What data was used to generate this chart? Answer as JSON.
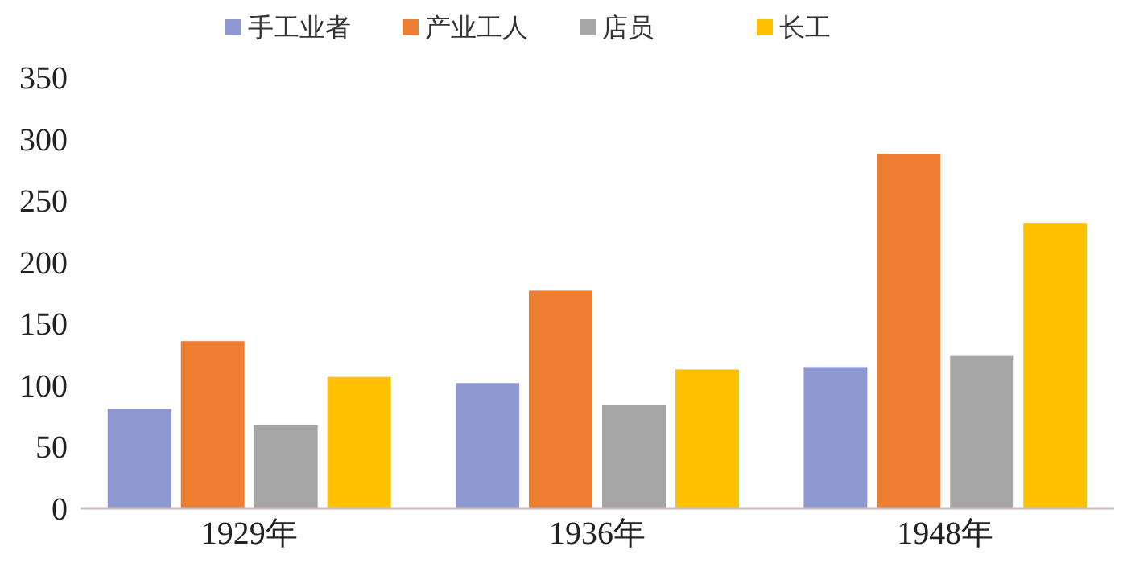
{
  "chart_data": {
    "type": "bar",
    "categories": [
      "1929年",
      "1936年",
      "1948年"
    ],
    "series": [
      {
        "name": "手工业者",
        "color": "#8e98d0",
        "values": [
          81,
          102,
          115
        ]
      },
      {
        "name": "产业工人",
        "color": "#ed7d31",
        "values": [
          136,
          177,
          288
        ]
      },
      {
        "name": "店员",
        "color": "#a5a5a5",
        "values": [
          68,
          84,
          124
        ]
      },
      {
        "name": "长工",
        "color": "#ffc000",
        "values": [
          107,
          113,
          232
        ]
      }
    ],
    "ylim": [
      0,
      350
    ],
    "yticks": [
      0,
      50,
      100,
      150,
      200,
      250,
      300,
      350
    ],
    "grid": false,
    "legend": "top"
  }
}
